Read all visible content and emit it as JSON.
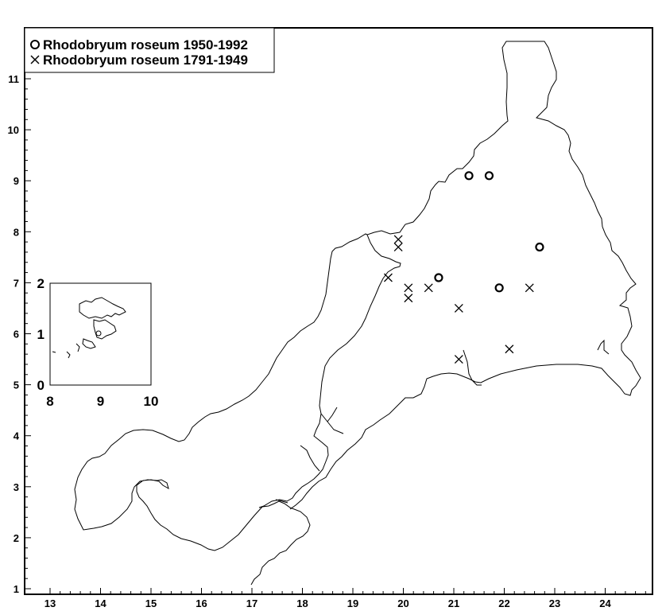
{
  "legend": {
    "recent": {
      "symbol": "circle",
      "label": "Rhodobryum roseum 1950-1992"
    },
    "historic": {
      "symbol": "cross",
      "label": "Rhodobryum roseum 1791-1949"
    }
  },
  "axes": {
    "x_ticks": [
      13,
      14,
      15,
      16,
      17,
      18,
      19,
      20,
      21,
      22,
      23,
      24
    ],
    "y_ticks": [
      1,
      2,
      3,
      4,
      5,
      6,
      7,
      8,
      9,
      10,
      11
    ]
  },
  "inset": {
    "x_ticks": [
      8,
      9,
      10
    ],
    "y_ticks": [
      0,
      1,
      2
    ]
  },
  "chart_data": {
    "type": "scatter",
    "xlim": [
      12.5,
      24.8
    ],
    "ylim": [
      0.9,
      11.9
    ],
    "grid": false,
    "legend_position": "top-left",
    "series": [
      {
        "name": "Rhodobryum roseum 1950-1992",
        "marker": "circle",
        "points": [
          {
            "x": 21.3,
            "y": 9.1
          },
          {
            "x": 21.7,
            "y": 9.1
          },
          {
            "x": 22.7,
            "y": 7.7
          },
          {
            "x": 20.7,
            "y": 7.1
          },
          {
            "x": 21.9,
            "y": 6.9
          }
        ]
      },
      {
        "name": "Rhodobryum roseum 1791-1949",
        "marker": "cross",
        "points": [
          {
            "x": 19.9,
            "y": 7.85
          },
          {
            "x": 19.9,
            "y": 7.7
          },
          {
            "x": 19.7,
            "y": 7.1
          },
          {
            "x": 20.1,
            "y": 6.9
          },
          {
            "x": 20.1,
            "y": 6.7
          },
          {
            "x": 20.5,
            "y": 6.9
          },
          {
            "x": 22.5,
            "y": 6.9
          },
          {
            "x": 21.1,
            "y": 6.5
          },
          {
            "x": 22.1,
            "y": 5.7
          },
          {
            "x": 21.1,
            "y": 5.5
          }
        ]
      }
    ]
  }
}
